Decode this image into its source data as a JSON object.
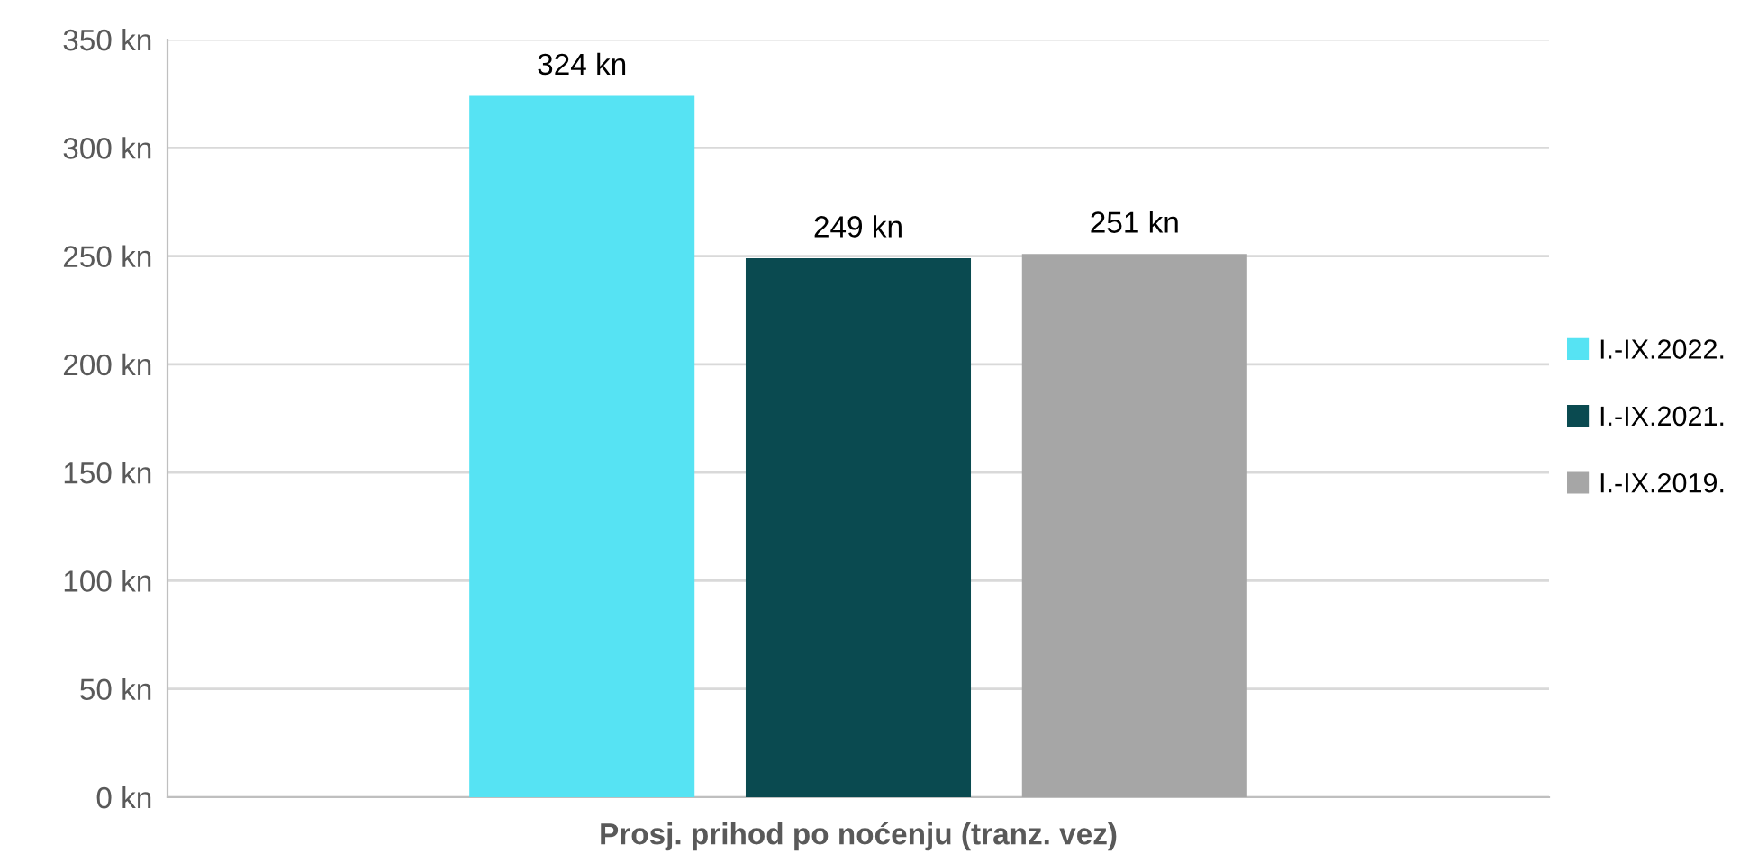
{
  "chart_data": {
    "type": "bar",
    "categories": [
      "Prosj. prihod po noćenju (tranz. vez)"
    ],
    "series": [
      {
        "name": "I.-IX.2022.",
        "color": "#56e3f3",
        "values": [
          324
        ],
        "value_labels": [
          "324 kn"
        ]
      },
      {
        "name": "I.-IX.2021.",
        "color": "#0a4a50",
        "values": [
          249
        ],
        "value_labels": [
          "249 kn"
        ]
      },
      {
        "name": "I.-IX.2019.",
        "color": "#a6a6a6",
        "values": [
          251
        ],
        "value_labels": [
          "251 kn"
        ]
      }
    ],
    "ylim": [
      0,
      350
    ],
    "yticks": [
      {
        "value": 0,
        "label": "0 kn"
      },
      {
        "value": 50,
        "label": "50 kn"
      },
      {
        "value": 100,
        "label": "100 kn"
      },
      {
        "value": 150,
        "label": "150 kn"
      },
      {
        "value": 200,
        "label": "200 kn"
      },
      {
        "value": 250,
        "label": "250 kn"
      },
      {
        "value": 300,
        "label": "300 kn"
      },
      {
        "value": 350,
        "label": "350 kn"
      }
    ],
    "grid": "y",
    "legend": "right"
  }
}
